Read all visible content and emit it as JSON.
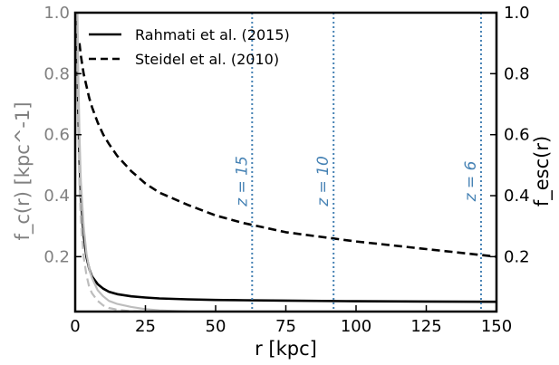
{
  "chart_data": {
    "type": "line",
    "xlabel": "r [kpc]",
    "ylabel_left": "f_c(r) [kpc^-1]",
    "ylabel_right": "f_esc(r)",
    "xlim": [
      0,
      150
    ],
    "ylim_left": [
      0.02,
      1.0
    ],
    "ylim_right": [
      0.02,
      1.0
    ],
    "xticks": [
      "0",
      "25",
      "50",
      "75",
      "100",
      "125",
      "150"
    ],
    "yticks_left": [
      "0.2",
      "0.4",
      "0.6",
      "0.8",
      "1.0"
    ],
    "yticks_right": [
      "0.2",
      "0.4",
      "0.6",
      "0.8",
      "1.0"
    ],
    "grid": false,
    "legend_position": "top-left",
    "colors": {
      "fesc": "#000000",
      "fc": "#bdbdbd",
      "redshift": "#4682b4",
      "left_axis_text": "#808080"
    },
    "series": [
      {
        "name": "Rahmati et al. (2015)",
        "axis": "right",
        "style": "solid",
        "color": "#000000",
        "x": [
          0.6,
          1,
          1.5,
          2,
          3,
          4,
          5,
          6,
          8,
          10,
          12,
          15,
          20,
          25,
          30,
          40,
          50,
          60,
          75,
          100,
          125,
          150
        ],
        "y": [
          1.0,
          0.72,
          0.52,
          0.4,
          0.27,
          0.2,
          0.16,
          0.135,
          0.11,
          0.095,
          0.085,
          0.077,
          0.07,
          0.066,
          0.063,
          0.06,
          0.058,
          0.057,
          0.056,
          0.054,
          0.053,
          0.052
        ]
      },
      {
        "name": "Steidel et al. (2010)",
        "axis": "right",
        "style": "dashed",
        "color": "#000000",
        "x": [
          1.5,
          2,
          3,
          4,
          5,
          6,
          8,
          10,
          12,
          15,
          20,
          25,
          30,
          40,
          50,
          60,
          75,
          100,
          125,
          150
        ],
        "y": [
          0.9,
          0.86,
          0.8,
          0.76,
          0.72,
          0.69,
          0.64,
          0.6,
          0.57,
          0.53,
          0.48,
          0.44,
          0.41,
          0.37,
          0.335,
          0.31,
          0.28,
          0.25,
          0.225,
          0.2
        ]
      },
      {
        "name": "",
        "axis": "left",
        "style": "solid",
        "color": "#bdbdbd",
        "x": [
          0.8,
          1,
          1.5,
          2,
          3,
          4,
          5,
          6,
          8,
          10,
          12,
          15,
          20,
          25,
          30,
          35,
          40
        ],
        "y": [
          1.0,
          0.85,
          0.6,
          0.45,
          0.3,
          0.21,
          0.16,
          0.13,
          0.09,
          0.07,
          0.055,
          0.045,
          0.035,
          0.028,
          0.024,
          0.022,
          0.02
        ]
      },
      {
        "name": "",
        "axis": "left",
        "style": "dashed",
        "color": "#bdbdbd",
        "x": [
          0.6,
          1,
          1.5,
          2,
          3,
          4,
          5,
          6,
          8,
          10,
          12,
          15,
          20,
          25
        ],
        "y": [
          1.0,
          0.65,
          0.43,
          0.32,
          0.2,
          0.14,
          0.1,
          0.08,
          0.055,
          0.04,
          0.032,
          0.026,
          0.021,
          0.02
        ]
      }
    ],
    "annotations": [
      {
        "label": "z = 15",
        "x": 63
      },
      {
        "label": "z = 10",
        "x": 92
      },
      {
        "label": "z = 6",
        "x": 144.5
      }
    ]
  }
}
